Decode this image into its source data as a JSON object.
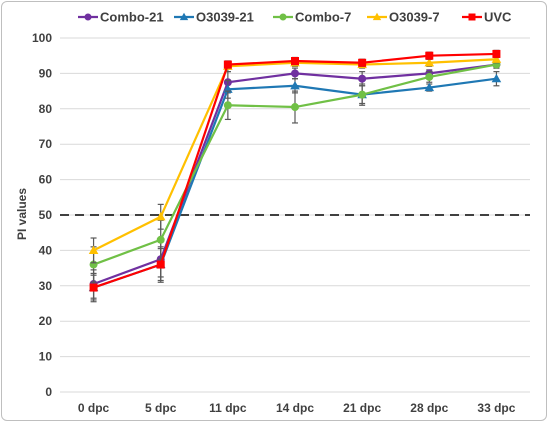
{
  "chart_data": {
    "type": "line",
    "title": "",
    "xlabel": "",
    "ylabel": "PI values",
    "categories": [
      "0 dpc",
      "5 dpc",
      "11 dpc",
      "14 dpc",
      "21 dpc",
      "28 dpc",
      "33 dpc"
    ],
    "ylim": [
      0,
      100
    ],
    "yticks": [
      0,
      10,
      20,
      30,
      40,
      50,
      60,
      70,
      80,
      90,
      100
    ],
    "threshold_line": {
      "value": 50,
      "style": "dashed",
      "color": "#262626"
    },
    "grid": "horizontal",
    "legend": "top",
    "series": [
      {
        "name": "Combo-21",
        "color": "#7030a0",
        "marker": "circle",
        "values": [
          30.5,
          37.5,
          87.5,
          90,
          88.5,
          90,
          92.5
        ],
        "errors": [
          4,
          5,
          3,
          1.5,
          2,
          1,
          1
        ]
      },
      {
        "name": "O3039-21",
        "color": "#1f78b4",
        "marker": "triangle",
        "values": [
          29.5,
          36,
          85.5,
          86.5,
          84,
          86,
          88.5
        ],
        "errors": [
          3.5,
          4.5,
          2.5,
          2,
          2.5,
          1,
          2
        ]
      },
      {
        "name": "Combo-7",
        "color": "#70c046",
        "marker": "circle",
        "values": [
          36,
          43,
          81,
          80.5,
          84,
          89,
          92.5
        ],
        "errors": [
          5,
          5.5,
          4,
          4.5,
          3,
          1.5,
          1
        ]
      },
      {
        "name": "O3039-7",
        "color": "#ffc000",
        "marker": "triangle",
        "values": [
          40,
          49.5,
          92,
          93,
          92.5,
          93,
          94
        ],
        "errors": [
          3.5,
          3.5,
          1.5,
          1,
          1,
          1,
          1
        ]
      },
      {
        "name": "UVC",
        "color": "#ff0000",
        "marker": "square",
        "values": [
          29.5,
          36,
          92.5,
          93.5,
          93,
          95,
          95.5
        ],
        "errors": [
          4,
          5,
          1,
          1,
          1,
          1,
          1
        ]
      }
    ]
  }
}
